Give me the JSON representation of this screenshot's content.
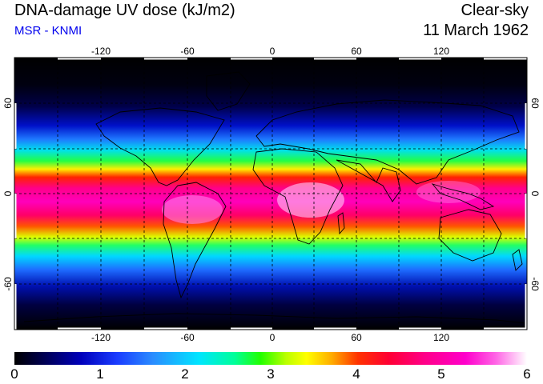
{
  "header": {
    "title": "DNA-damage UV dose (kJ/m2)",
    "subtitle": "MSR - KNMI",
    "sky_condition": "Clear-sky",
    "date": "11 March 1962"
  },
  "map": {
    "longitude_ticks": [
      "-120",
      "-60",
      "0",
      "60",
      "120"
    ],
    "latitude_ticks_left": [
      "60",
      "0",
      "-60"
    ],
    "latitude_ticks_right": [
      "60",
      "0",
      "-60"
    ],
    "grid_longitudes": [
      -150,
      -120,
      -90,
      -60,
      -30,
      0,
      30,
      60,
      90,
      120,
      150
    ],
    "grid_latitudes": [
      60,
      30,
      0,
      -30,
      -60
    ]
  },
  "colorbar": {
    "ticks": [
      "0",
      "1",
      "2",
      "3",
      "4",
      "5",
      "6"
    ],
    "range": [
      0,
      6
    ],
    "colors": [
      "#000000",
      "#0000bb",
      "#00e5ff",
      "#22ff00",
      "#ffff00",
      "#ff0033",
      "#ff00cc",
      "#ffffff"
    ]
  }
}
